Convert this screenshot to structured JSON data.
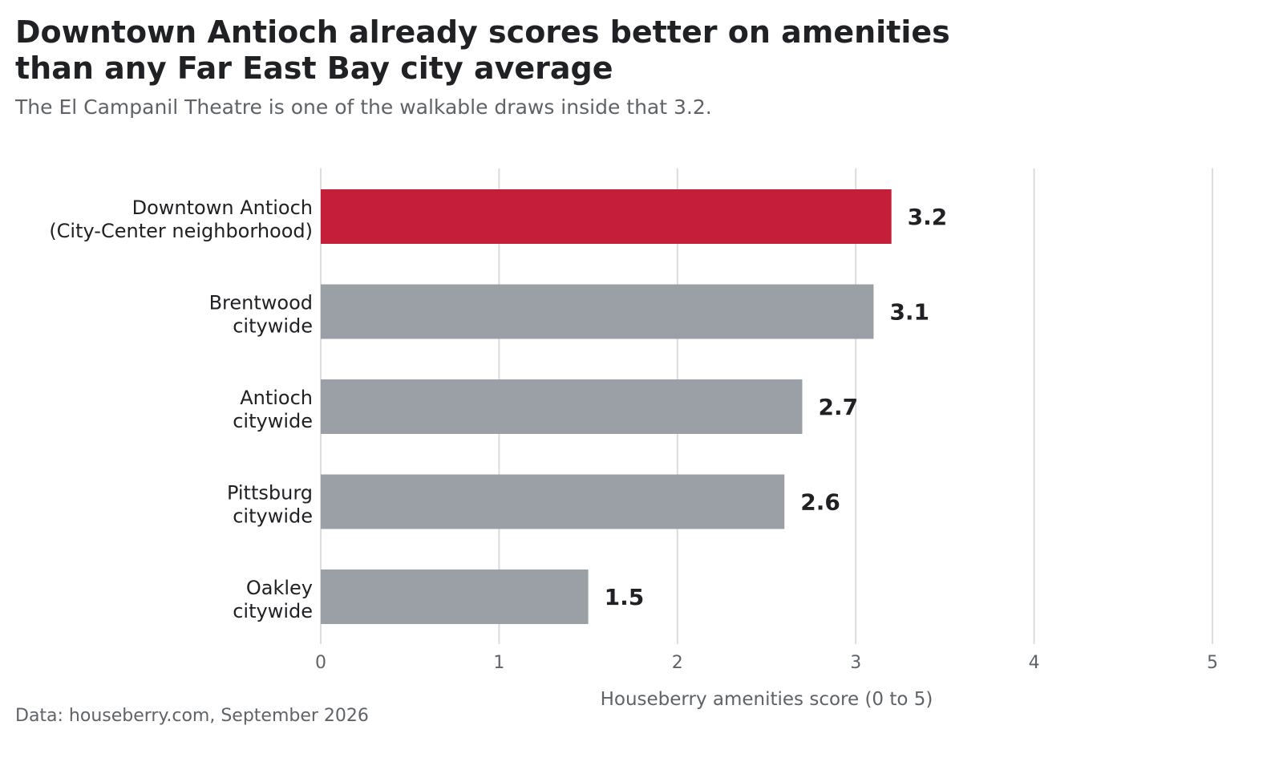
{
  "chart_data": {
    "type": "bar",
    "orientation": "horizontal",
    "title_lines": [
      "Downtown Antioch already scores better on amenities",
      "than any Far East Bay city average"
    ],
    "subtitle": "The El Campanil Theatre is one of the walkable draws inside that 3.2.",
    "xlabel": "Houseberry amenities score (0 to 5)",
    "xlim": [
      0,
      5
    ],
    "xticks": [
      "0",
      "1",
      "2",
      "3",
      "4",
      "5"
    ],
    "grid": "vertical",
    "categories": [
      {
        "lines": [
          "Downtown Antioch",
          "(City-Center neighborhood)"
        ],
        "value": 3.2,
        "label": "3.2",
        "highlight": true
      },
      {
        "lines": [
          "Brentwood",
          "citywide"
        ],
        "value": 3.1,
        "label": "3.1",
        "highlight": false
      },
      {
        "lines": [
          "Antioch",
          "citywide"
        ],
        "value": 2.7,
        "label": "2.7",
        "highlight": false
      },
      {
        "lines": [
          "Pittsburg",
          "citywide"
        ],
        "value": 2.6,
        "label": "2.6",
        "highlight": false
      },
      {
        "lines": [
          "Oakley",
          "citywide"
        ],
        "value": 1.5,
        "label": "1.5",
        "highlight": false
      }
    ],
    "colors": {
      "highlight": "#c41e3a",
      "default": "#9aa0a6"
    },
    "source": "Data: houseberry.com, September 2026"
  }
}
